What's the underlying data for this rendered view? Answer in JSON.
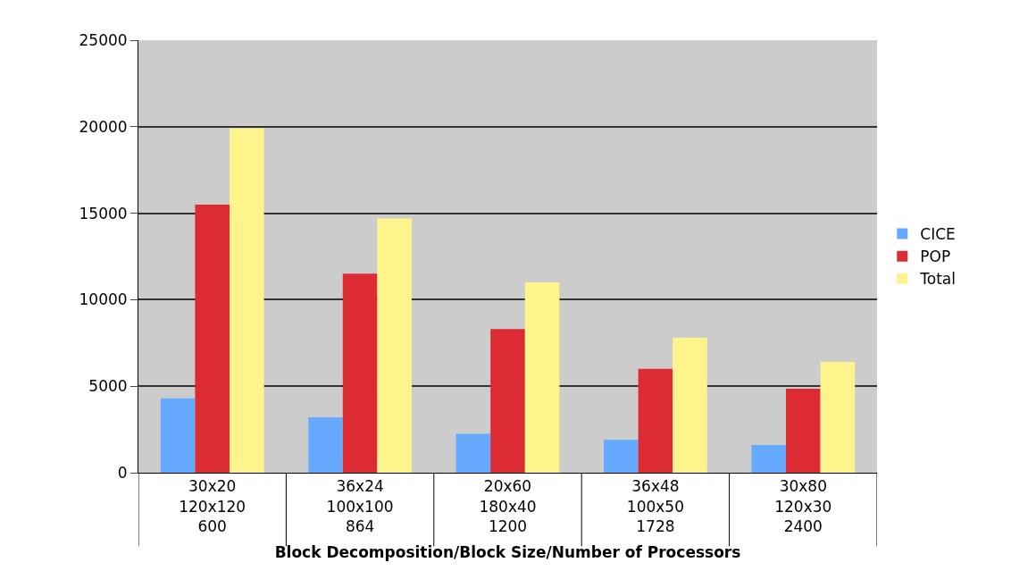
{
  "chart_data": {
    "type": "bar",
    "xlabel": "Block Decomposition/Block Size/Number of Processors",
    "categories": [
      "30x20\n120x120\n600",
      "36x24\n100x100\n864",
      "20x60\n180x40\n1200",
      "36x48\n100x50\n1728",
      "30x80\n120x30\n2400"
    ],
    "series": [
      {
        "name": "CICE",
        "color": "#66aaff",
        "values": [
          4300,
          3200,
          2250,
          1900,
          1600
        ]
      },
      {
        "name": "POP",
        "color": "#dc2b33",
        "values": [
          15500,
          11500,
          8300,
          6000,
          4850
        ]
      },
      {
        "name": "Total",
        "color": "#fff38c",
        "values": [
          19900,
          14700,
          11000,
          7800,
          6400
        ]
      }
    ],
    "ylim": [
      0,
      25000
    ],
    "yticks": [
      0,
      5000,
      10000,
      15000,
      20000,
      25000
    ],
    "grid": "y",
    "legend": "right"
  }
}
